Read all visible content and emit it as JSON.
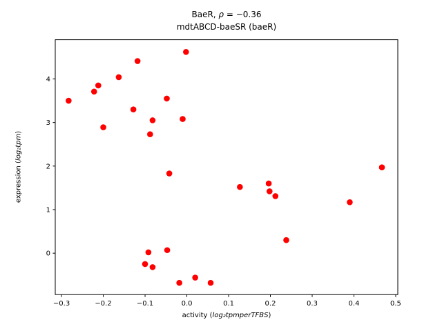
{
  "figure": {
    "title_prefix": "BaeR, ",
    "title_rho": "ρ",
    "title_rest": " = −0.36",
    "title_line2": "mdtABCD-baeSR (baeR)",
    "xlabel_prefix": "activity (",
    "xlabel_math": "log₂tpmperTFBS",
    "xlabel_suffix": ")",
    "ylabel_prefix": "expression (",
    "ylabel_math": "log₂tpm",
    "ylabel_suffix": ")"
  },
  "chart_data": {
    "type": "scatter",
    "title": "BaeR, ρ = −0.36",
    "subtitle": "mdtABCD-baeSR (baeR)",
    "xlabel": "activity (log₂tpmperTFBS)",
    "ylabel": "expression (log₂tpm)",
    "legend": null,
    "grid": false,
    "marker_color": "#ff0000",
    "xlim": [
      -0.315,
      0.505
    ],
    "ylim": [
      -0.95,
      4.9
    ],
    "xticks": [
      -0.3,
      -0.2,
      -0.1,
      0.0,
      0.1,
      0.2,
      0.3,
      0.4,
      0.5
    ],
    "yticks": [
      0,
      1,
      2,
      3,
      4
    ],
    "points": [
      [
        -0.283,
        3.5
      ],
      [
        -0.222,
        3.71
      ],
      [
        -0.212,
        3.85
      ],
      [
        -0.2,
        2.89
      ],
      [
        -0.163,
        4.04
      ],
      [
        -0.128,
        3.3
      ],
      [
        -0.118,
        4.41
      ],
      [
        -0.088,
        2.73
      ],
      [
        -0.082,
        3.05
      ],
      [
        -0.048,
        3.55
      ],
      [
        -0.042,
        1.83
      ],
      [
        -0.01,
        3.08
      ],
      [
        -0.002,
        4.62
      ],
      [
        0.127,
        1.52
      ],
      [
        0.196,
        1.6
      ],
      [
        0.198,
        1.42
      ],
      [
        0.212,
        1.31
      ],
      [
        0.238,
        0.3
      ],
      [
        0.39,
        1.17
      ],
      [
        0.467,
        1.97
      ],
      [
        -0.092,
        0.02
      ],
      [
        -0.1,
        -0.25
      ],
      [
        -0.082,
        -0.32
      ],
      [
        -0.047,
        0.07
      ],
      [
        -0.018,
        -0.68
      ],
      [
        0.02,
        -0.56
      ],
      [
        0.057,
        -0.68
      ]
    ]
  }
}
